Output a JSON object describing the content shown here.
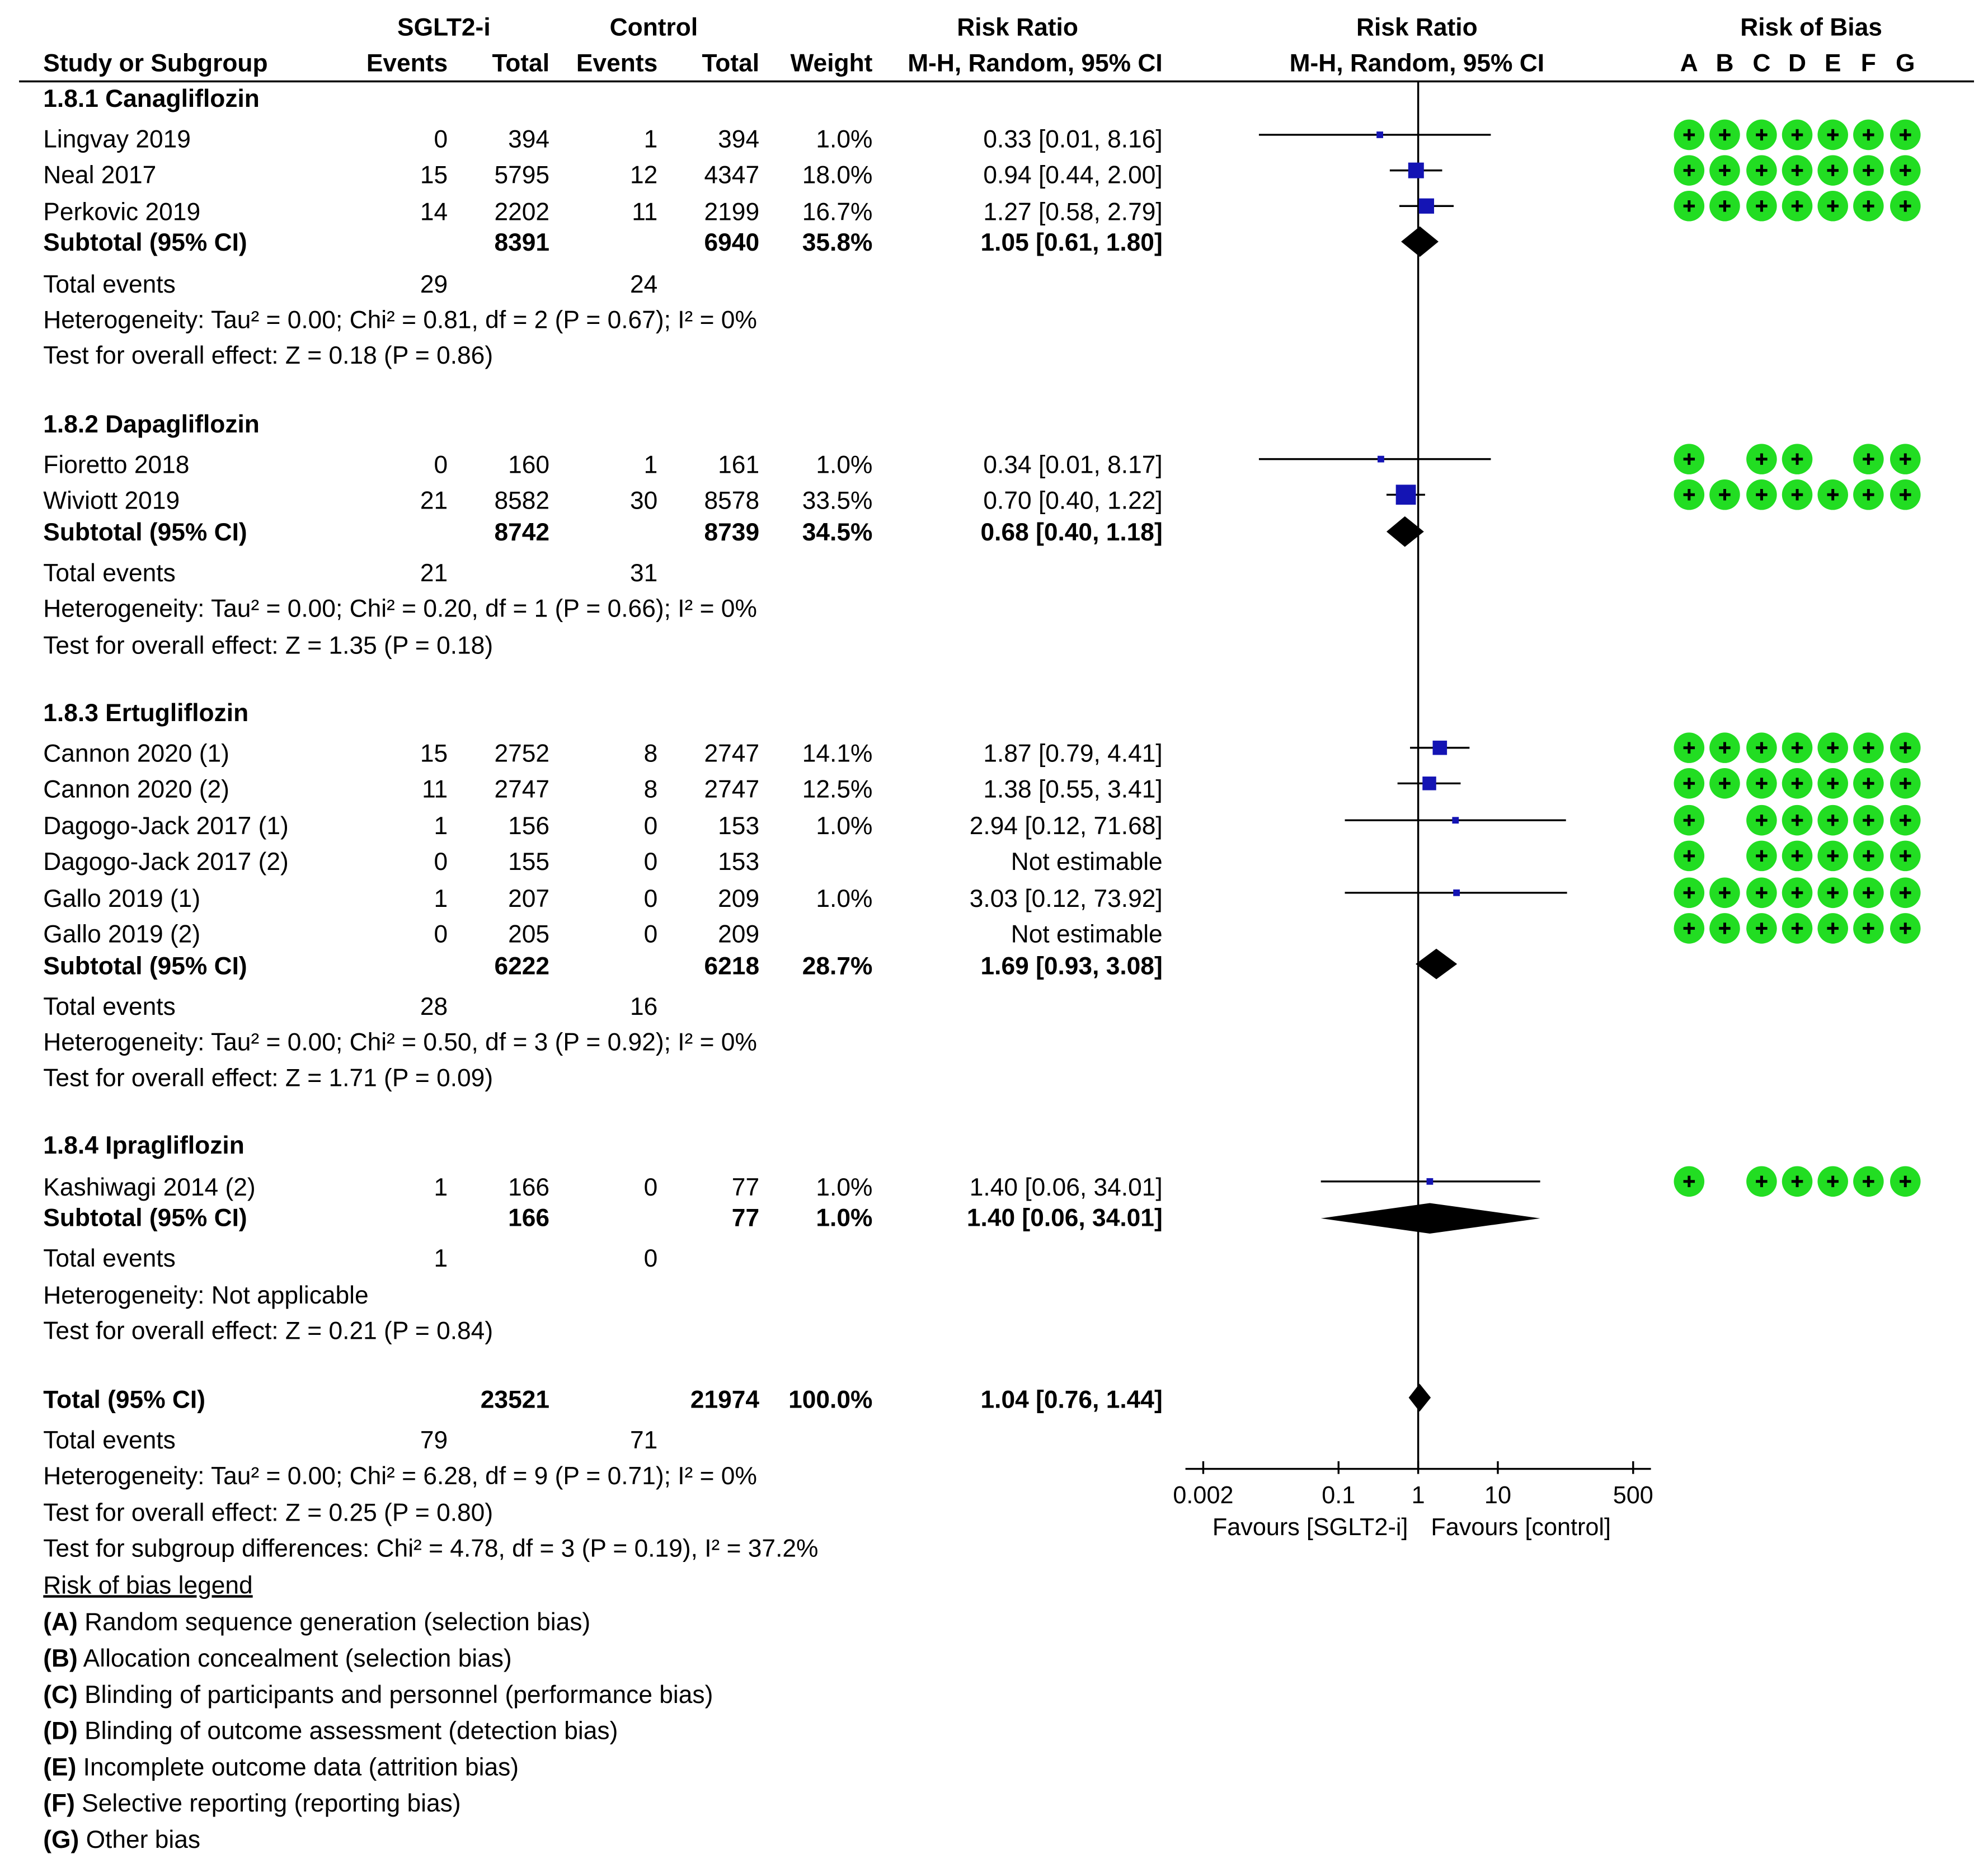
{
  "header": {
    "group1": "SGLT2-i",
    "group2": "Control",
    "rr_title": "Risk Ratio",
    "rr_method": "M-H, Random, 95% CI",
    "plot_title": "Risk Ratio",
    "plot_method": "M-H, Random, 95% CI",
    "rob_title": "Risk of Bias",
    "study_col": "Study or Subgroup",
    "events": "Events",
    "total": "Total",
    "weight": "Weight",
    "rob_letters": [
      "A",
      "B",
      "C",
      "D",
      "E",
      "F",
      "G"
    ]
  },
  "subgroups": [
    {
      "title": "1.8.1 Canagliflozin",
      "studies": [
        {
          "name": "Lingvay 2019",
          "e1": "0",
          "t1": "394",
          "e2": "1",
          "t2": "394",
          "weight": "1.0%",
          "ci": "0.33 [0.01, 8.16]"
        },
        {
          "name": "Neal 2017",
          "e1": "15",
          "t1": "5795",
          "e2": "12",
          "t2": "4347",
          "weight": "18.0%",
          "ci": "0.94 [0.44, 2.00]"
        },
        {
          "name": "Perkovic 2019",
          "e1": "14",
          "t1": "2202",
          "e2": "11",
          "t2": "2199",
          "weight": "16.7%",
          "ci": "1.27 [0.58, 2.79]"
        }
      ],
      "subtotal": {
        "label": "Subtotal (95% CI)",
        "t1": "8391",
        "t2": "6940",
        "weight": "35.8%",
        "ci": "1.05 [0.61, 1.80]"
      },
      "total_events": {
        "label": "Total events",
        "e1": "29",
        "e2": "24"
      },
      "heterogeneity": "Heterogeneity: Tau² = 0.00; Chi² = 0.81, df = 2 (P = 0.67); I² = 0%",
      "overall": "Test for overall effect: Z = 0.18 (P = 0.86)"
    },
    {
      "title": "1.8.2 Dapagliflozin",
      "studies": [
        {
          "name": "Fioretto 2018",
          "e1": "0",
          "t1": "160",
          "e2": "1",
          "t2": "161",
          "weight": "1.0%",
          "ci": "0.34 [0.01, 8.17]"
        },
        {
          "name": "Wiviott 2019",
          "e1": "21",
          "t1": "8582",
          "e2": "30",
          "t2": "8578",
          "weight": "33.5%",
          "ci": "0.70 [0.40, 1.22]"
        }
      ],
      "subtotal": {
        "label": "Subtotal (95% CI)",
        "t1": "8742",
        "t2": "8739",
        "weight": "34.5%",
        "ci": "0.68 [0.40, 1.18]"
      },
      "total_events": {
        "label": "Total events",
        "e1": "21",
        "e2": "31"
      },
      "heterogeneity": "Heterogeneity: Tau² = 0.00; Chi² = 0.20, df = 1 (P = 0.66); I² = 0%",
      "overall": "Test for overall effect: Z = 1.35 (P = 0.18)"
    },
    {
      "title": "1.8.3 Ertugliflozin",
      "studies": [
        {
          "name": "Cannon 2020 (1)",
          "e1": "15",
          "t1": "2752",
          "e2": "8",
          "t2": "2747",
          "weight": "14.1%",
          "ci": "1.87 [0.79, 4.41]"
        },
        {
          "name": "Cannon 2020 (2)",
          "e1": "11",
          "t1": "2747",
          "e2": "8",
          "t2": "2747",
          "weight": "12.5%",
          "ci": "1.38 [0.55, 3.41]"
        },
        {
          "name": "Dagogo-Jack 2017 (1)",
          "e1": "1",
          "t1": "156",
          "e2": "0",
          "t2": "153",
          "weight": "1.0%",
          "ci": "2.94 [0.12, 71.68]"
        },
        {
          "name": "Dagogo-Jack 2017 (2)",
          "e1": "0",
          "t1": "155",
          "e2": "0",
          "t2": "153",
          "weight": "",
          "ci": "Not estimable"
        },
        {
          "name": "Gallo 2019 (1)",
          "e1": "1",
          "t1": "207",
          "e2": "0",
          "t2": "209",
          "weight": "1.0%",
          "ci": "3.03 [0.12, 73.92]"
        },
        {
          "name": "Gallo 2019 (2)",
          "e1": "0",
          "t1": "205",
          "e2": "0",
          "t2": "209",
          "weight": "",
          "ci": "Not estimable"
        }
      ],
      "subtotal": {
        "label": "Subtotal (95% CI)",
        "t1": "6222",
        "t2": "6218",
        "weight": "28.7%",
        "ci": "1.69 [0.93, 3.08]"
      },
      "total_events": {
        "label": "Total events",
        "e1": "28",
        "e2": "16"
      },
      "heterogeneity": "Heterogeneity: Tau² = 0.00; Chi² = 0.50, df = 3 (P = 0.92); I² = 0%",
      "overall": "Test for overall effect: Z = 1.71 (P = 0.09)"
    },
    {
      "title": "1.8.4 Ipragliflozin",
      "studies": [
        {
          "name": "Kashiwagi 2014 (2)",
          "e1": "1",
          "t1": "166",
          "e2": "0",
          "t2": "77",
          "weight": "1.0%",
          "ci": "1.40 [0.06, 34.01]"
        }
      ],
      "subtotal": {
        "label": "Subtotal (95% CI)",
        "t1": "166",
        "t2": "77",
        "weight": "1.0%",
        "ci": "1.40 [0.06, 34.01]"
      },
      "total_events": {
        "label": "Total events",
        "e1": "1",
        "e2": "0"
      },
      "heterogeneity": "Heterogeneity: Not applicable",
      "overall": "Test for overall effect: Z = 0.21 (P = 0.84)"
    }
  ],
  "overall_total": {
    "label": "Total (95% CI)",
    "t1": "23521",
    "t2": "21974",
    "weight": "100.0%",
    "ci": "1.04 [0.76, 1.44]",
    "total_events": {
      "label": "Total events",
      "e1": "79",
      "e2": "71"
    },
    "heterogeneity": "Heterogeneity: Tau² = 0.00; Chi² = 6.28, df = 9 (P = 0.71); I² = 0%",
    "overall": "Test for overall effect: Z = 0.25 (P = 0.80)",
    "subgroup_diff": "Test for subgroup differences: Chi² = 4.78, df = 3 (P = 0.19), I² = 37.2%"
  },
  "legend": {
    "title": "Risk of bias legend",
    "items": [
      {
        "key": "(A)",
        "text": " Random sequence generation (selection bias)"
      },
      {
        "key": "(B)",
        "text": " Allocation concealment (selection bias)"
      },
      {
        "key": "(C)",
        "text": " Blinding of participants and personnel (performance bias)"
      },
      {
        "key": "(D)",
        "text": " Blinding of outcome assessment (detection bias)"
      },
      {
        "key": "(E)",
        "text": " Incomplete outcome data (attrition bias)"
      },
      {
        "key": "(F)",
        "text": " Selective reporting (reporting bias)"
      },
      {
        "key": "(G)",
        "text": " Other bias"
      }
    ]
  },
  "colors": {
    "study_marker": "#1414b4",
    "diamond": "#000000",
    "low_risk": "#22dd22"
  },
  "chart_data": {
    "type": "forest",
    "scale": "log",
    "xlim": [
      0.002,
      500
    ],
    "ticks": [
      {
        "value": 0.002,
        "label": "0.002"
      },
      {
        "value": 0.1,
        "label": "0.1"
      },
      {
        "value": 1,
        "label": "1"
      },
      {
        "value": 10,
        "label": "10"
      },
      {
        "value": 500,
        "label": "500"
      }
    ],
    "favours_left": "Favours [SGLT2-i]",
    "favours_right": "Favours [control]",
    "studies": [
      {
        "name": "Lingvay 2019",
        "rr": 0.33,
        "lo": 0.01,
        "hi": 8.16,
        "w": 1.0,
        "rob": [
          "+",
          "+",
          "+",
          "+",
          "+",
          "+",
          "+"
        ]
      },
      {
        "name": "Neal 2017",
        "rr": 0.94,
        "lo": 0.44,
        "hi": 2.0,
        "w": 18.0,
        "rob": [
          "+",
          "+",
          "+",
          "+",
          "+",
          "+",
          "+"
        ]
      },
      {
        "name": "Perkovic 2019",
        "rr": 1.27,
        "lo": 0.58,
        "hi": 2.79,
        "w": 16.7,
        "rob": [
          "+",
          "+",
          "+",
          "+",
          "+",
          "+",
          "+"
        ]
      },
      {
        "name": "Fioretto 2018",
        "rr": 0.34,
        "lo": 0.01,
        "hi": 8.17,
        "w": 1.0,
        "rob": [
          "+",
          "",
          "+",
          "+",
          "",
          "+",
          "+"
        ]
      },
      {
        "name": "Wiviott 2019",
        "rr": 0.7,
        "lo": 0.4,
        "hi": 1.22,
        "w": 33.5,
        "rob": [
          "+",
          "+",
          "+",
          "+",
          "+",
          "+",
          "+"
        ]
      },
      {
        "name": "Cannon 2020 (1)",
        "rr": 1.87,
        "lo": 0.79,
        "hi": 4.41,
        "w": 14.1,
        "rob": [
          "+",
          "+",
          "+",
          "+",
          "+",
          "+",
          "+"
        ]
      },
      {
        "name": "Cannon 2020 (2)",
        "rr": 1.38,
        "lo": 0.55,
        "hi": 3.41,
        "w": 12.5,
        "rob": [
          "+",
          "+",
          "+",
          "+",
          "+",
          "+",
          "+"
        ]
      },
      {
        "name": "Dagogo-Jack 2017 (1)",
        "rr": 2.94,
        "lo": 0.12,
        "hi": 71.68,
        "w": 1.0,
        "rob": [
          "+",
          "",
          "+",
          "+",
          "+",
          "+",
          "+"
        ]
      },
      {
        "name": "Dagogo-Jack 2017 (2)",
        "rr": null,
        "lo": null,
        "hi": null,
        "w": 0,
        "rob": [
          "+",
          "",
          "+",
          "+",
          "+",
          "+",
          "+"
        ]
      },
      {
        "name": "Gallo 2019 (1)",
        "rr": 3.03,
        "lo": 0.12,
        "hi": 73.92,
        "w": 1.0,
        "rob": [
          "+",
          "+",
          "+",
          "+",
          "+",
          "+",
          "+"
        ]
      },
      {
        "name": "Gallo 2019 (2)",
        "rr": null,
        "lo": null,
        "hi": null,
        "w": 0,
        "rob": [
          "+",
          "+",
          "+",
          "+",
          "+",
          "+",
          "+"
        ]
      },
      {
        "name": "Kashiwagi 2014 (2)",
        "rr": 1.4,
        "lo": 0.06,
        "hi": 34.01,
        "w": 1.0,
        "rob": [
          "+",
          "",
          "+",
          "+",
          "+",
          "+",
          "+"
        ]
      }
    ],
    "subtotals": [
      {
        "name": "Subtotal 1.8.1",
        "rr": 1.05,
        "lo": 0.61,
        "hi": 1.8
      },
      {
        "name": "Subtotal 1.8.2",
        "rr": 0.68,
        "lo": 0.4,
        "hi": 1.18
      },
      {
        "name": "Subtotal 1.8.3",
        "rr": 1.69,
        "lo": 0.93,
        "hi": 3.08
      },
      {
        "name": "Subtotal 1.8.4",
        "rr": 1.4,
        "lo": 0.06,
        "hi": 34.01
      }
    ],
    "overall": {
      "name": "Total",
      "rr": 1.04,
      "lo": 0.76,
      "hi": 1.44
    }
  }
}
